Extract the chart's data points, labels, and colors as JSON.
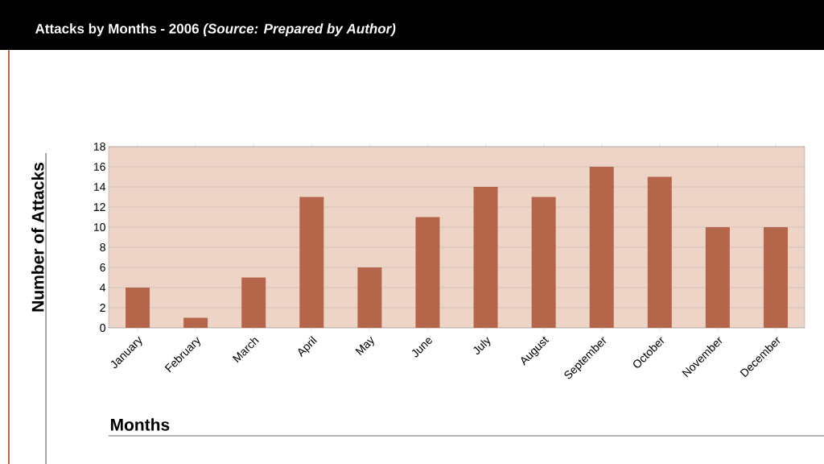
{
  "chart_data": {
    "type": "bar",
    "title": "Attacks by Months - 2006 *(Source: Prepared by Author)*",
    "xlabel": "Months",
    "ylabel": "Number of Attacks",
    "categories": [
      "January",
      "February",
      "March",
      "April",
      "May",
      "June",
      "July",
      "August",
      "September",
      "October",
      "November",
      "December"
    ],
    "values": [
      4,
      1,
      5,
      13,
      6,
      11,
      14,
      13,
      16,
      15,
      10,
      10
    ],
    "color": "#b5654a",
    "ylim": [
      0,
      18
    ],
    "yticks": [
      0,
      2,
      4,
      6,
      8,
      10,
      12,
      14,
      16,
      18
    ],
    "grid": "y"
  }
}
